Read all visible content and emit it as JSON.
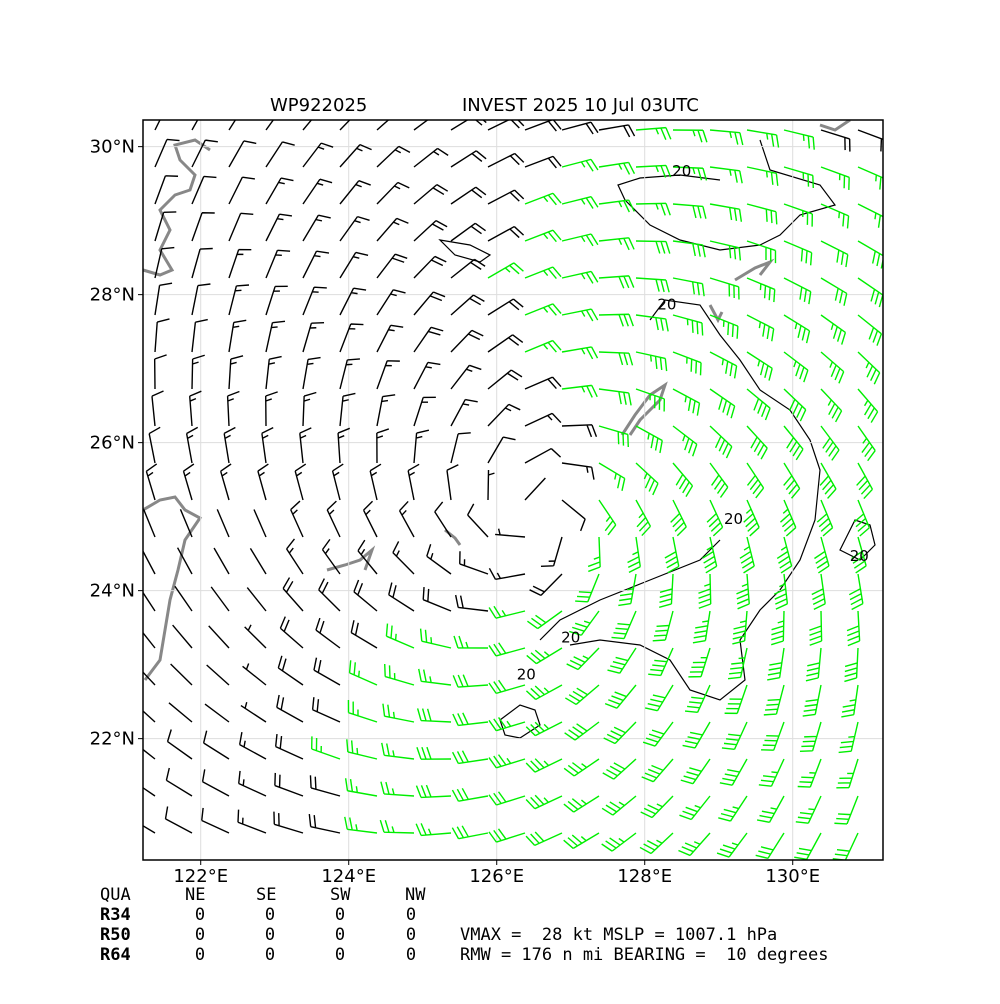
{
  "map": {
    "title_left": "WP922025",
    "title_right": "INVEST 2025 10 Jul 03UTC",
    "xlim": [
      121.22,
      131.22
    ],
    "ylim": [
      20.36,
      30.36
    ],
    "xticks": [
      {
        "value": 122,
        "label": "122°E"
      },
      {
        "value": 124,
        "label": "124°E"
      },
      {
        "value": 126,
        "label": "126°E"
      },
      {
        "value": 128,
        "label": "128°E"
      },
      {
        "value": 130,
        "label": "130°E"
      }
    ],
    "yticks": [
      {
        "value": 22,
        "label": "22°N"
      },
      {
        "value": 24,
        "label": "24°N"
      },
      {
        "value": 26,
        "label": "26°N"
      },
      {
        "value": 28,
        "label": "28°N"
      },
      {
        "value": 30,
        "label": "30°N"
      }
    ],
    "contour_labels": [
      {
        "lon": 128.5,
        "lat": 29.6,
        "label": "20"
      },
      {
        "lon": 128.3,
        "lat": 27.8,
        "label": "20"
      },
      {
        "lon": 129.2,
        "lat": 24.9,
        "label": "20"
      },
      {
        "lon": 127.0,
        "lat": 23.3,
        "label": "20"
      },
      {
        "lon": 126.4,
        "lat": 22.8,
        "label": "20"
      },
      {
        "lon": 130.9,
        "lat": 24.4,
        "label": "20"
      }
    ],
    "grid": true
  },
  "table": {
    "header": [
      "QUA",
      "NE",
      "SE",
      "SW",
      "NW"
    ],
    "rows": [
      [
        "R34",
        0,
        0,
        0,
        0
      ],
      [
        "R50",
        0,
        0,
        0,
        0
      ],
      [
        "R64",
        0,
        0,
        0,
        0
      ]
    ]
  },
  "info": [
    "VMAX =  28 kt MSLP = 1007.1 hPa",
    "RMW = 176 n mi BEARING =  10 degrees"
  ]
}
